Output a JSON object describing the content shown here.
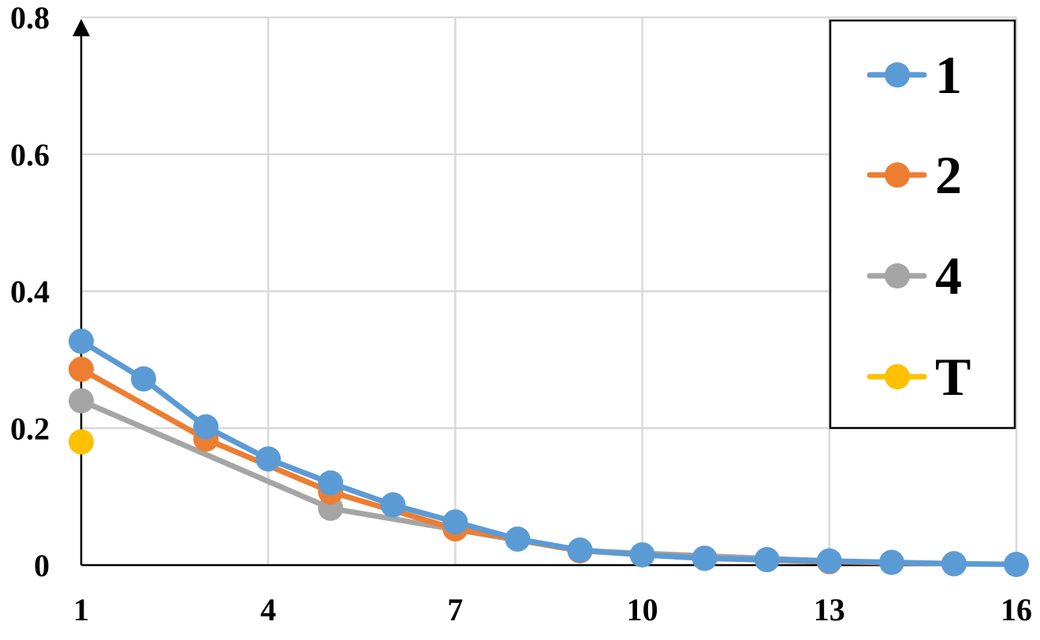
{
  "chart_data": {
    "type": "line",
    "title": "",
    "xlabel": "",
    "ylabel": "",
    "xlim": [
      1,
      16
    ],
    "ylim": [
      0,
      0.8
    ],
    "x_ticks": [
      1,
      4,
      7,
      10,
      13,
      16
    ],
    "y_ticks": [
      0,
      0.2,
      0.4,
      0.6,
      0.8
    ],
    "x_tick_labels": [
      "1",
      "4",
      "7",
      "10",
      "13",
      "16"
    ],
    "y_tick_labels": [
      "0",
      "0.2",
      "0.4",
      "0.6",
      "0.8"
    ],
    "grid": true,
    "legend_position": "top-right",
    "series": [
      {
        "name": "1",
        "color": "#5B9BD5",
        "x": [
          1,
          2,
          3,
          4,
          5,
          6,
          7,
          8,
          9,
          10,
          11,
          12,
          13,
          14,
          15,
          16
        ],
        "y": [
          0.327,
          0.272,
          0.202,
          0.155,
          0.12,
          0.088,
          0.063,
          0.038,
          0.022,
          0.015,
          0.01,
          0.008,
          0.006,
          0.004,
          0.002,
          0.001
        ]
      },
      {
        "name": "2",
        "color": "#ED7D31",
        "x": [
          1,
          3,
          5,
          7,
          9,
          11,
          13,
          15
        ],
        "y": [
          0.286,
          0.184,
          0.107,
          0.053,
          0.021,
          0.01,
          0.005,
          0.002
        ]
      },
      {
        "name": "4",
        "color": "#A5A5A5",
        "x": [
          1,
          5,
          9,
          13
        ],
        "y": [
          0.24,
          0.083,
          0.021,
          0.006
        ]
      },
      {
        "name": "T",
        "color": "#FFC000",
        "x": [
          1
        ],
        "y": [
          0.18
        ]
      }
    ]
  }
}
